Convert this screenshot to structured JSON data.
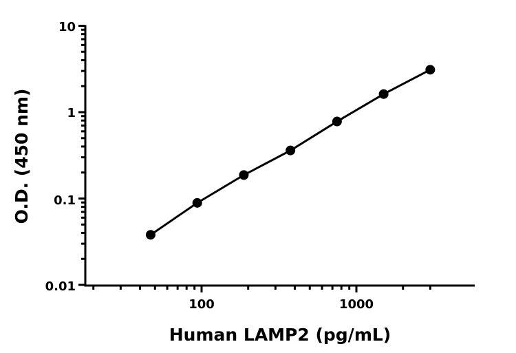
{
  "chart_data": {
    "type": "line",
    "title": "",
    "xlabel": "Human LAMP2 (pg/mL)",
    "ylabel": "O.D. (450 nm)",
    "x_scale": "log",
    "y_scale": "log",
    "xlim": [
      17.7,
      5800
    ],
    "ylim": [
      0.01,
      10
    ],
    "x_ticks": [
      "100",
      "1000"
    ],
    "y_ticks": [
      "0.01",
      "0.1",
      "1",
      "10"
    ],
    "grid": false,
    "series": [
      {
        "x": [
          46.875,
          93.75,
          187.5,
          375,
          750,
          1500,
          3000
        ],
        "y": [
          0.038,
          0.089,
          0.187,
          0.36,
          0.78,
          1.62,
          3.1
        ],
        "marker": "filled-circle",
        "color": "#000000"
      }
    ]
  }
}
